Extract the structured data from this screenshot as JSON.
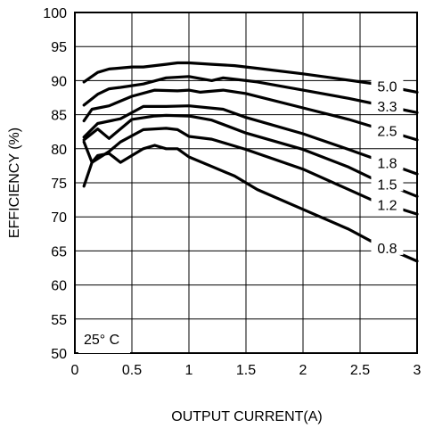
{
  "chart_data": {
    "type": "line",
    "xlabel": "OUTPUT CURRENT(A)",
    "ylabel": "EFFICIENCY (%)",
    "xlim": [
      0,
      3
    ],
    "ylim": [
      50,
      100
    ],
    "xticks": [
      0,
      0.5,
      1,
      1.5,
      2,
      2.5,
      3
    ],
    "xtick_labels": [
      "0",
      "0.5",
      "1",
      "1.5",
      "2",
      "2.5",
      "3"
    ],
    "yticks": [
      50,
      55,
      60,
      65,
      70,
      75,
      80,
      85,
      90,
      95,
      100
    ],
    "ytick_labels": [
      "50",
      "55",
      "60",
      "65",
      "70",
      "75",
      "80",
      "85",
      "90",
      "95",
      "100"
    ],
    "grid": true,
    "annotation": "25° C",
    "series": [
      {
        "name": "5.0",
        "x": [
          0.08,
          0.2,
          0.3,
          0.5,
          0.6,
          0.8,
          0.9,
          1.0,
          1.2,
          1.4,
          1.6,
          2.0,
          2.3,
          2.6,
          3.0
        ],
        "y": [
          89.8,
          91.2,
          91.7,
          92.0,
          92.0,
          92.4,
          92.6,
          92.6,
          92.4,
          92.2,
          91.8,
          91.0,
          90.3,
          89.6,
          88.3
        ]
      },
      {
        "name": "3.3",
        "x": [
          0.08,
          0.2,
          0.3,
          0.4,
          0.6,
          0.8,
          1.0,
          1.2,
          1.3,
          1.6,
          2.0,
          2.4,
          2.8,
          3.0
        ],
        "y": [
          86.4,
          88.0,
          88.8,
          89.0,
          89.5,
          90.4,
          90.6,
          90.0,
          90.4,
          89.8,
          88.6,
          87.4,
          86.0,
          85.3
        ]
      },
      {
        "name": "2.5",
        "x": [
          0.08,
          0.15,
          0.3,
          0.5,
          0.7,
          0.9,
          1.0,
          1.1,
          1.3,
          1.5,
          2.0,
          2.4,
          2.6,
          3.0
        ],
        "y": [
          84.1,
          85.8,
          86.3,
          87.7,
          88.6,
          88.5,
          88.6,
          88.3,
          88.6,
          88.1,
          86.0,
          84.3,
          83.3,
          81.3
        ]
      },
      {
        "name": "1.8",
        "x": [
          0.08,
          0.2,
          0.4,
          0.6,
          0.8,
          1.0,
          1.3,
          1.5,
          2.0,
          2.4,
          2.6,
          3.0
        ],
        "y": [
          81.7,
          83.7,
          84.4,
          86.2,
          86.2,
          86.3,
          85.8,
          84.6,
          82.2,
          79.9,
          78.7,
          76.3
        ]
      },
      {
        "name": "1.5",
        "x": [
          0.08,
          0.2,
          0.3,
          0.5,
          0.7,
          0.8,
          1.0,
          1.2,
          1.5,
          2.0,
          2.4,
          2.6,
          3.0
        ],
        "y": [
          81.3,
          82.9,
          81.5,
          84.3,
          84.8,
          84.9,
          84.8,
          84.2,
          82.3,
          79.9,
          77.3,
          75.7,
          73.0
        ]
      },
      {
        "name": "1.2",
        "x": [
          0.08,
          0.15,
          0.3,
          0.4,
          0.6,
          0.8,
          0.9,
          1.0,
          1.2,
          1.5,
          2.0,
          2.4,
          2.6,
          3.0
        ],
        "y": [
          81.0,
          78.0,
          79.6,
          81.0,
          82.8,
          83.0,
          82.8,
          81.8,
          81.4,
          79.9,
          77.0,
          74.0,
          72.5,
          70.4
        ]
      },
      {
        "name": "0.8",
        "x": [
          0.08,
          0.15,
          0.2,
          0.3,
          0.4,
          0.6,
          0.7,
          0.8,
          0.9,
          1.0,
          1.2,
          1.4,
          1.6,
          2.0,
          2.4,
          2.6,
          3.0
        ],
        "y": [
          74.5,
          78.0,
          79.0,
          79.3,
          78.0,
          80.0,
          80.5,
          80.0,
          80.0,
          78.8,
          77.4,
          76.0,
          74.0,
          71.1,
          68.2,
          66.4,
          63.5
        ]
      }
    ]
  }
}
